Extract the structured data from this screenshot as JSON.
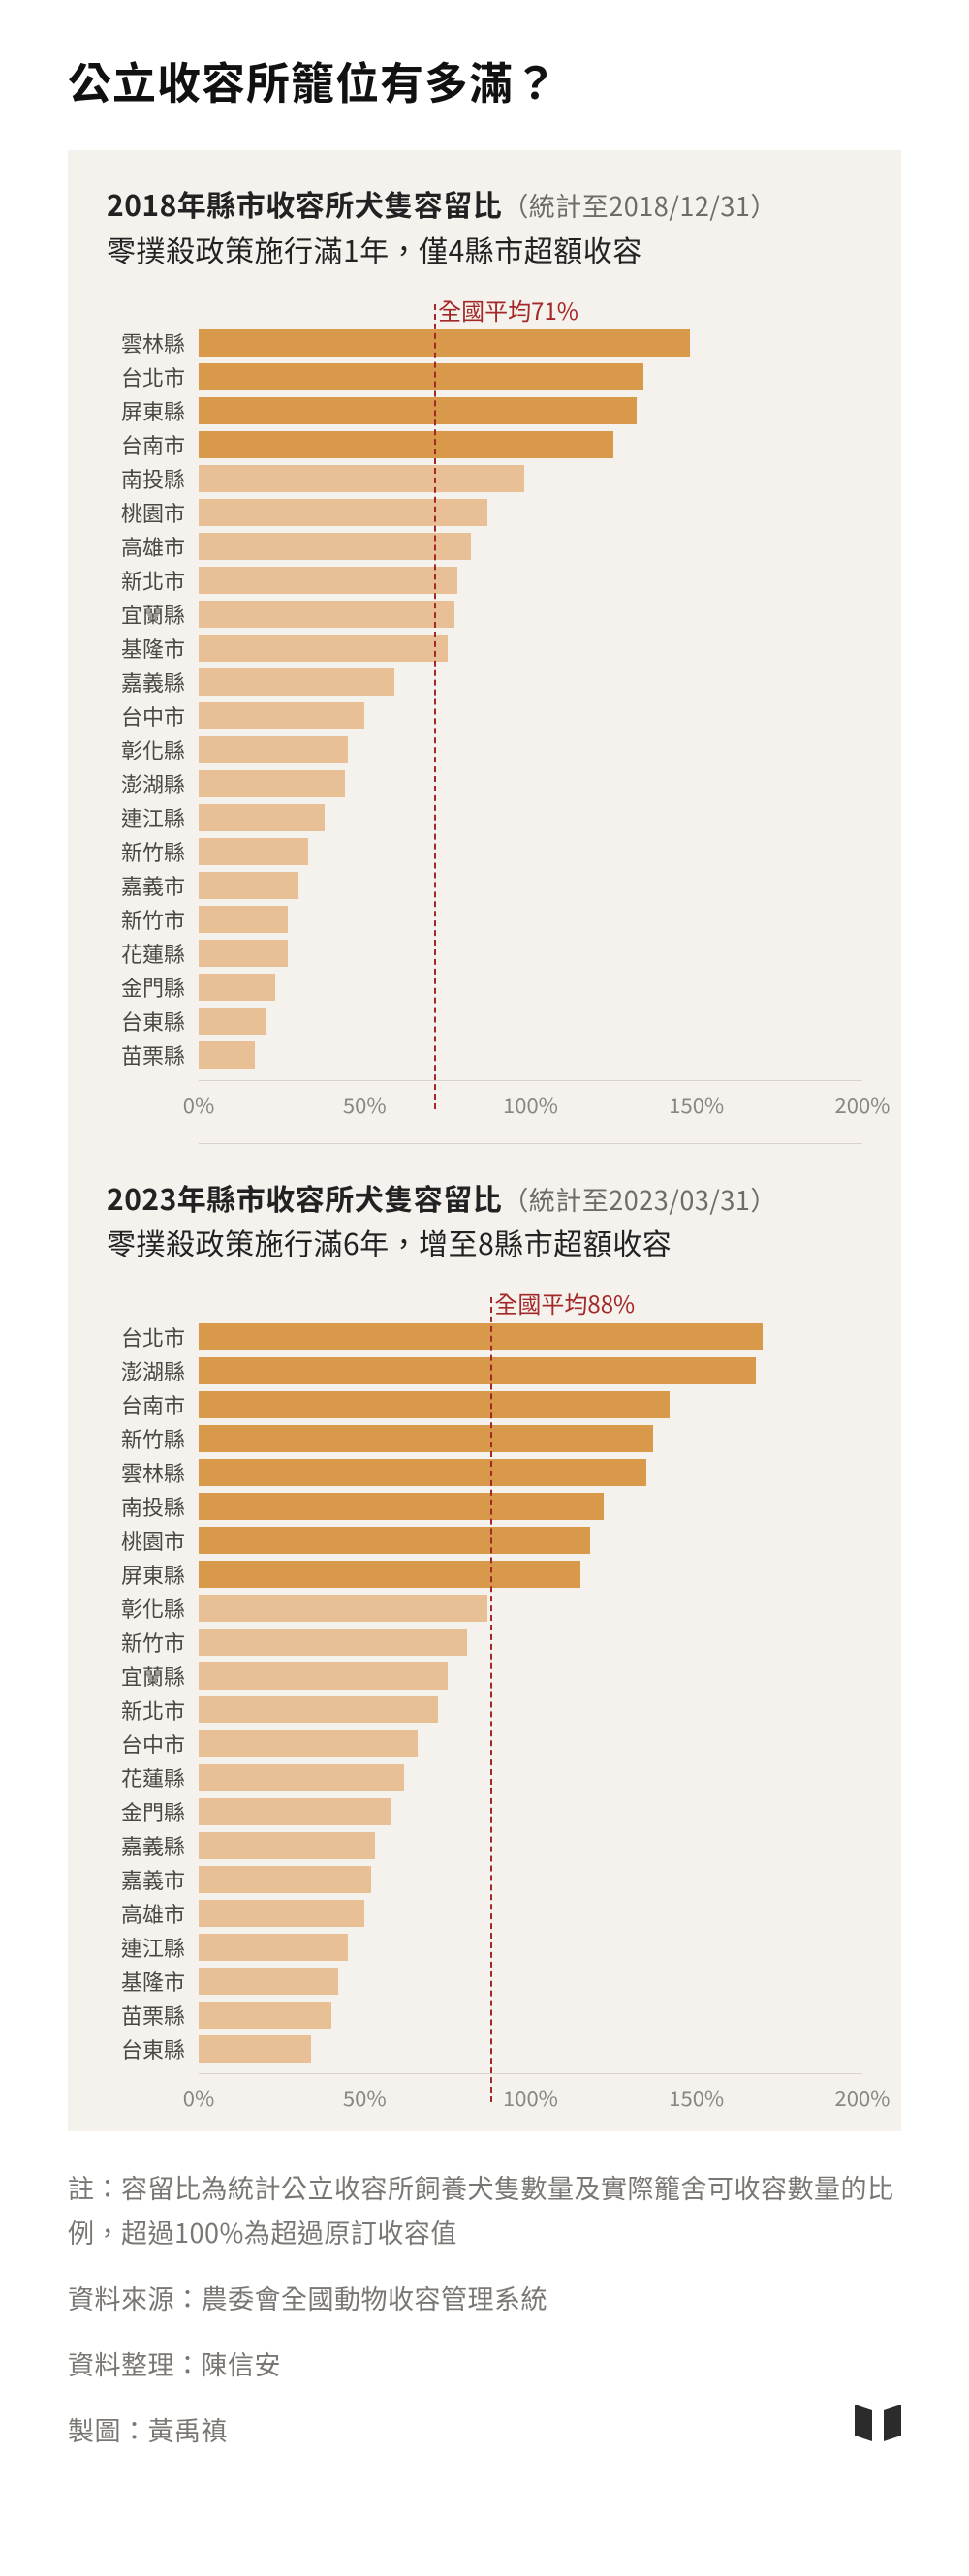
{
  "title": "公立收容所籠位有多滿？",
  "colors": {
    "bg_panel": "#f5f1ed",
    "bar_over": "#d89a4a",
    "bar_under": "#e9c095",
    "avg_line": "#a32828",
    "text_main": "#222222",
    "text_muted": "#7a7773",
    "axis_text": "#8a8682",
    "logo": "#2b2b2b"
  },
  "x_axis": {
    "min": 0,
    "max": 200,
    "ticks": [
      0,
      50,
      100,
      150,
      200
    ],
    "tick_labels": [
      "0%",
      "50%",
      "100%",
      "150%",
      "200%"
    ]
  },
  "chart1": {
    "title_bold": "2018年縣市收容所犬隻容留比",
    "title_sub": "（統計至2018/12/31）",
    "subtitle": "零撲殺政策施行滿1年，僅4縣市超額收容",
    "avg_value": 71,
    "avg_label": "全國平均71%",
    "over_threshold": 100,
    "data": [
      {
        "label": "雲林縣",
        "value": 148
      },
      {
        "label": "台北市",
        "value": 134
      },
      {
        "label": "屏東縣",
        "value": 132
      },
      {
        "label": "台南市",
        "value": 125
      },
      {
        "label": "南投縣",
        "value": 98
      },
      {
        "label": "桃園市",
        "value": 87
      },
      {
        "label": "高雄市",
        "value": 82
      },
      {
        "label": "新北市",
        "value": 78
      },
      {
        "label": "宜蘭縣",
        "value": 77
      },
      {
        "label": "基隆市",
        "value": 75
      },
      {
        "label": "嘉義縣",
        "value": 59
      },
      {
        "label": "台中市",
        "value": 50
      },
      {
        "label": "彰化縣",
        "value": 45
      },
      {
        "label": "澎湖縣",
        "value": 44
      },
      {
        "label": "連江縣",
        "value": 38
      },
      {
        "label": "新竹縣",
        "value": 33
      },
      {
        "label": "嘉義市",
        "value": 30
      },
      {
        "label": "新竹市",
        "value": 27
      },
      {
        "label": "花蓮縣",
        "value": 27
      },
      {
        "label": "金門縣",
        "value": 23
      },
      {
        "label": "台東縣",
        "value": 20
      },
      {
        "label": "苗栗縣",
        "value": 17
      }
    ]
  },
  "chart2": {
    "title_bold": "2023年縣市收容所犬隻容留比",
    "title_sub": "（統計至2023/03/31）",
    "subtitle": "零撲殺政策施行滿6年，增至8縣市超額收容",
    "avg_value": 88,
    "avg_label": "全國平均88%",
    "over_threshold": 100,
    "data": [
      {
        "label": "台北市",
        "value": 170
      },
      {
        "label": "澎湖縣",
        "value": 168
      },
      {
        "label": "台南市",
        "value": 142
      },
      {
        "label": "新竹縣",
        "value": 137
      },
      {
        "label": "雲林縣",
        "value": 135
      },
      {
        "label": "南投縣",
        "value": 122
      },
      {
        "label": "桃園市",
        "value": 118
      },
      {
        "label": "屏東縣",
        "value": 115
      },
      {
        "label": "彰化縣",
        "value": 87
      },
      {
        "label": "新竹市",
        "value": 81
      },
      {
        "label": "宜蘭縣",
        "value": 75
      },
      {
        "label": "新北市",
        "value": 72
      },
      {
        "label": "台中市",
        "value": 66
      },
      {
        "label": "花蓮縣",
        "value": 62
      },
      {
        "label": "金門縣",
        "value": 58
      },
      {
        "label": "嘉義縣",
        "value": 53
      },
      {
        "label": "嘉義市",
        "value": 52
      },
      {
        "label": "高雄市",
        "value": 50
      },
      {
        "label": "連江縣",
        "value": 45
      },
      {
        "label": "基隆市",
        "value": 42
      },
      {
        "label": "苗栗縣",
        "value": 40
      },
      {
        "label": "台東縣",
        "value": 34
      }
    ]
  },
  "footnotes": [
    "註：容留比為統計公立收容所飼養犬隻數量及實際籠舍可收容數量的比例，超過100%為超過原訂收容值",
    "資料來源：農委會全國動物收容管理系統",
    "資料整理：陳信安",
    "製圖：黃禹禛"
  ]
}
